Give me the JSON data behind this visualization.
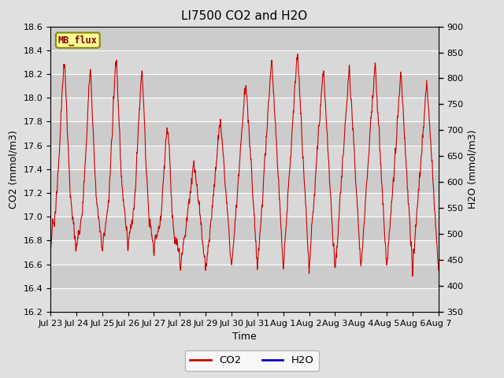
{
  "title": "LI7500 CO2 and H2O",
  "xlabel": "Time",
  "ylabel_left": "CO2 (mmol/m3)",
  "ylabel_right": "H2O (mmol/m3)",
  "co2_ylim": [
    16.2,
    18.6
  ],
  "h2o_ylim": [
    350,
    900
  ],
  "x_tick_labels": [
    "Jul 23",
    "Jul 24",
    "Jul 25",
    "Jul 26",
    "Jul 27",
    "Jul 28",
    "Jul 29",
    "Jul 30",
    "Jul 31",
    "Aug 1",
    "Aug 2",
    "Aug 3",
    "Aug 4",
    "Aug 5",
    "Aug 6",
    "Aug 7"
  ],
  "co2_color": "#cc0000",
  "h2o_color": "#0000cc",
  "background_color": "#e0e0e0",
  "plot_bg_upper": "#d4d4d4",
  "plot_bg_lower": "#c8c8c8",
  "annotation_text": "MB_flux",
  "annotation_bg": "#ffff99",
  "annotation_border": "#cccc00",
  "legend_co2": "CO2",
  "legend_h2o": "H2O",
  "linewidth": 0.8,
  "grid_color": "#ffffff",
  "title_fontsize": 11,
  "axis_fontsize": 9,
  "tick_fontsize": 8
}
